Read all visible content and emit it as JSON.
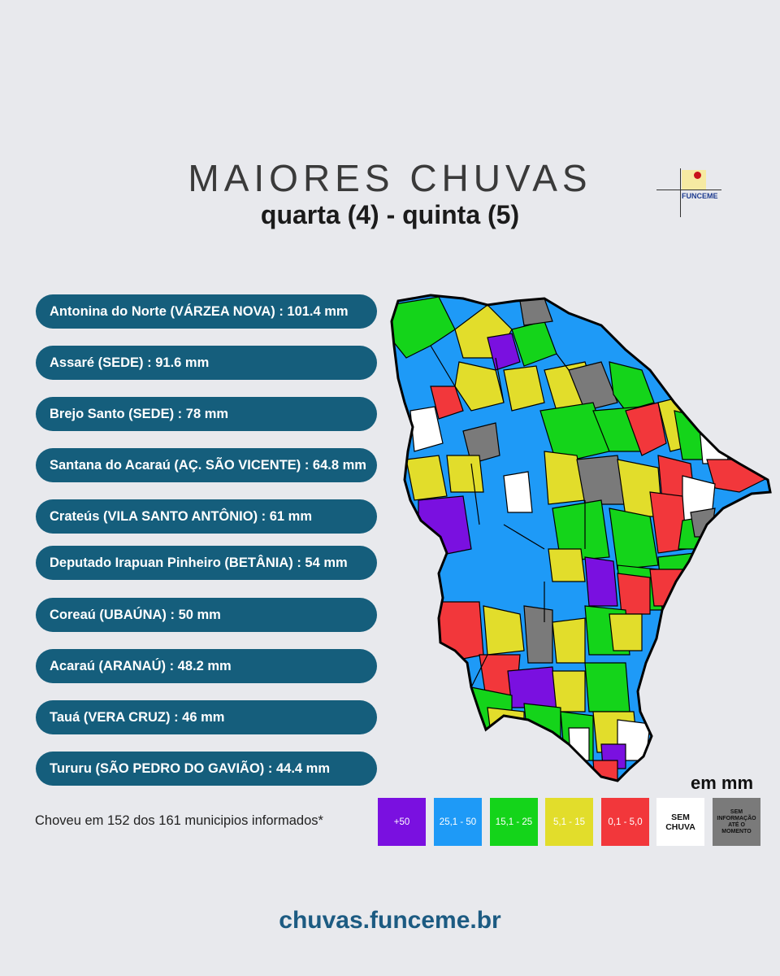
{
  "header": {
    "title": "MAIORES CHUVAS",
    "subtitle": "quarta (4) - quinta (5)",
    "logo_text": "FUNCEME"
  },
  "ranking": [
    {
      "text": "Antonina do Norte (VÁRZEA NOVA) : 101.4 mm"
    },
    {
      "text": "Assaré (SEDE) : 91.6 mm"
    },
    {
      "text": "Brejo Santo (SEDE) : 78 mm"
    },
    {
      "text": "Santana do Acaraú (AÇ. SÃO VICENTE) : 64.8 mm"
    },
    {
      "text": "Crateús (VILA SANTO ANTÔNIO) : 61 mm"
    },
    {
      "text": "Deputado Irapuan Pinheiro (BETÂNIA) : 54 mm"
    },
    {
      "text": "Coreaú (UBAÚNA) : 50 mm"
    },
    {
      "text": "Acaraú (ARANAÚ) : 48.2 mm"
    },
    {
      "text": "Tauá (VERA CRUZ) : 46 mm"
    },
    {
      "text": "Tururu (SÃO PEDRO DO GAVIÃO) : 44.4 mm"
    }
  ],
  "legend": {
    "unit": "em mm",
    "footnote": "Choveu em 152 dos 161 municipios informados*",
    "items": [
      {
        "label": "+50",
        "color": "#7a10e0"
      },
      {
        "label": "25,1 - 50",
        "color": "#1e9af7"
      },
      {
        "label": "15,1 - 25",
        "color": "#14d41a"
      },
      {
        "label": "5,1 - 15",
        "color": "#e2dd2b"
      },
      {
        "label": "0,1 - 5,0",
        "color": "#f2373b"
      },
      {
        "label": "SEM CHUVA",
        "color": "#ffffff"
      },
      {
        "label": "SEM INFORMAÇÃO ATÉ O MOMENTO",
        "color": "#7a7a7a"
      }
    ]
  },
  "footer": {
    "url": "chuvas.funceme.br"
  }
}
